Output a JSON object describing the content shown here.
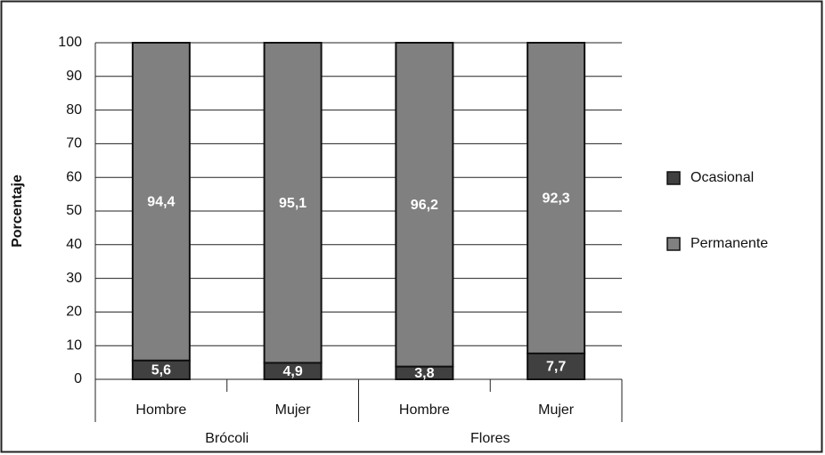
{
  "chart_data": {
    "type": "stacked_bar",
    "y_label": "Porcentaje",
    "categories": [
      "Hombre",
      "Mujer",
      "Hombre",
      "Mujer"
    ],
    "groups": [
      "Brócoli",
      "Flores"
    ],
    "series": [
      {
        "name": "Ocasional",
        "color": "#404040",
        "values": [
          5.6,
          4.9,
          3.8,
          7.7
        ],
        "value_labels": [
          "5,6",
          "4,9",
          "3,8",
          "7,7"
        ]
      },
      {
        "name": "Permanente",
        "color": "#808080",
        "values": [
          94.4,
          95.1,
          96.2,
          92.3
        ],
        "value_labels": [
          "94,4",
          "95,1",
          "96,2",
          "92,3"
        ]
      }
    ],
    "ylim": [
      0,
      100
    ],
    "yticks": [
      0,
      10,
      20,
      30,
      40,
      50,
      60,
      70,
      80,
      90,
      100
    ],
    "grid": true,
    "legend": "right"
  }
}
